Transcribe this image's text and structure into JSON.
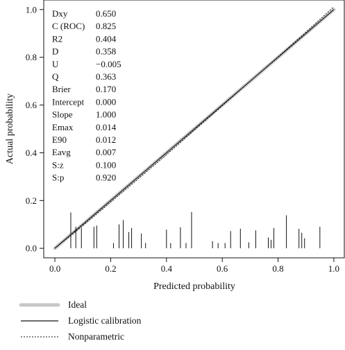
{
  "chart_data": {
    "type": "line",
    "title": "",
    "xlabel": "Predicted probability",
    "ylabel": "Actual probability",
    "xlim": [
      -0.04,
      1.04
    ],
    "ylim": [
      -0.04,
      1.04
    ],
    "xticks": [
      0.0,
      0.2,
      0.4,
      0.6,
      0.8,
      1.0
    ],
    "yticks": [
      0.0,
      0.2,
      0.4,
      0.6,
      0.8,
      1.0
    ],
    "xtick_labels": [
      "0.0",
      "0.2",
      "0.4",
      "0.6",
      "0.8",
      "1.0"
    ],
    "ytick_labels": [
      "0.0",
      "0.2",
      "0.4",
      "0.6",
      "0.8",
      "1.0"
    ],
    "grid": false,
    "legend_position": "bottom-left, below plot",
    "series": [
      {
        "name": "Ideal",
        "style": "thick light gray solid",
        "color": "#c8c8c8",
        "x": [
          0.0,
          1.0
        ],
        "y": [
          0.0,
          1.0
        ]
      },
      {
        "name": "Logistic calibration",
        "style": "solid black",
        "color": "#111111",
        "x": [
          0.0,
          0.2,
          0.4,
          0.6,
          0.8,
          1.0
        ],
        "y": [
          0.0,
          0.2,
          0.4,
          0.6,
          0.8,
          1.0
        ]
      },
      {
        "name": "Nonparametric",
        "style": "dotted black",
        "color": "#111111",
        "x": [
          0.0,
          0.1,
          0.2,
          0.3,
          0.4,
          0.5,
          0.6,
          0.7,
          0.8,
          0.9,
          1.0
        ],
        "y": [
          0.0,
          0.095,
          0.193,
          0.292,
          0.392,
          0.495,
          0.597,
          0.7,
          0.802,
          0.905,
          1.012
        ]
      }
    ],
    "spikes": {
      "description": "rug of predicted probabilities",
      "x": [
        0.057,
        0.075,
        0.095,
        0.14,
        0.15,
        0.21,
        0.23,
        0.245,
        0.265,
        0.275,
        0.31,
        0.325,
        0.4,
        0.415,
        0.45,
        0.47,
        0.49,
        0.565,
        0.585,
        0.61,
        0.63,
        0.665,
        0.695,
        0.72,
        0.765,
        0.775,
        0.785,
        0.83,
        0.875,
        0.885,
        0.895,
        0.95
      ],
      "heights": [
        0.15,
        0.09,
        0.085,
        0.09,
        0.095,
        0.022,
        0.1,
        0.118,
        0.068,
        0.085,
        0.062,
        0.022,
        0.078,
        0.022,
        0.088,
        0.022,
        0.152,
        0.03,
        0.022,
        0.022,
        0.072,
        0.082,
        0.025,
        0.075,
        0.045,
        0.035,
        0.085,
        0.138,
        0.082,
        0.065,
        0.042,
        0.09
      ]
    },
    "stats": [
      {
        "label": "Dxy",
        "value": "0.650"
      },
      {
        "label": "C (ROC)",
        "value": "0.825"
      },
      {
        "label": "R2",
        "value": "0.404"
      },
      {
        "label": "D",
        "value": "0.358"
      },
      {
        "label": "U",
        "value": "−0.005"
      },
      {
        "label": "Q",
        "value": "0.363"
      },
      {
        "label": "Brier",
        "value": "0.170"
      },
      {
        "label": "Intercept",
        "value": "0.000"
      },
      {
        "label": "Slope",
        "value": "1.000"
      },
      {
        "label": "Emax",
        "value": "0.014"
      },
      {
        "label": "E90",
        "value": "0.012"
      },
      {
        "label": "Eavg",
        "value": "0.007"
      },
      {
        "label": "S:z",
        "value": "0.100"
      },
      {
        "label": "S:p",
        "value": "0.920"
      }
    ]
  }
}
